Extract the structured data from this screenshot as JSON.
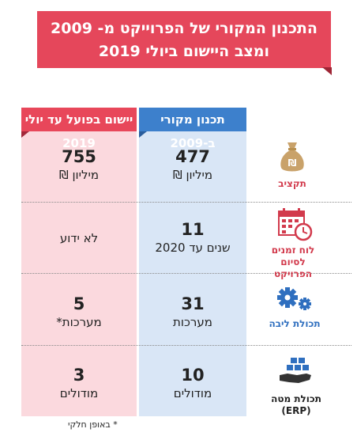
{
  "title": {
    "line1": "התכנון המקורי של הפרוייקט מ- 2009",
    "line2": "ומצב היישום ביולי 2019"
  },
  "columns": {
    "original": "תכנון מקורי ב-2009",
    "actual": "יישום בפועל עד יולי 2019"
  },
  "rows": [
    {
      "label": "תקציב",
      "icon": "money-bag-icon",
      "original_value": "477",
      "original_unit": "מיליון ₪",
      "actual_value": "755",
      "actual_unit": "מיליון ₪"
    },
    {
      "label_line1": "לוח זמנים",
      "label_line2": "לסיום הפרויקט",
      "icon": "calendar-clock-icon",
      "original_value": "11",
      "original_unit": "שנים עד 2020",
      "actual_text": "לא ידוע"
    },
    {
      "label": "תכולת ליבה",
      "icon": "gears-icon",
      "original_value": "31",
      "original_unit": "מערכות",
      "actual_value": "5",
      "actual_unit": "מערכות*"
    },
    {
      "label": "תכולת מטה (ERP)",
      "icon": "hand-blocks-icon",
      "original_value": "10",
      "original_unit": "מודולים",
      "actual_value": "3",
      "actual_unit": "מודולים"
    }
  ],
  "footnote": "* באופן חלקי",
  "colors": {
    "red": "#e5475b",
    "blue": "#3d80cc",
    "gold": "#c9a26a",
    "icon_blue": "#2f6fbf",
    "icon_red": "#d23a4c",
    "dark": "#333333"
  }
}
